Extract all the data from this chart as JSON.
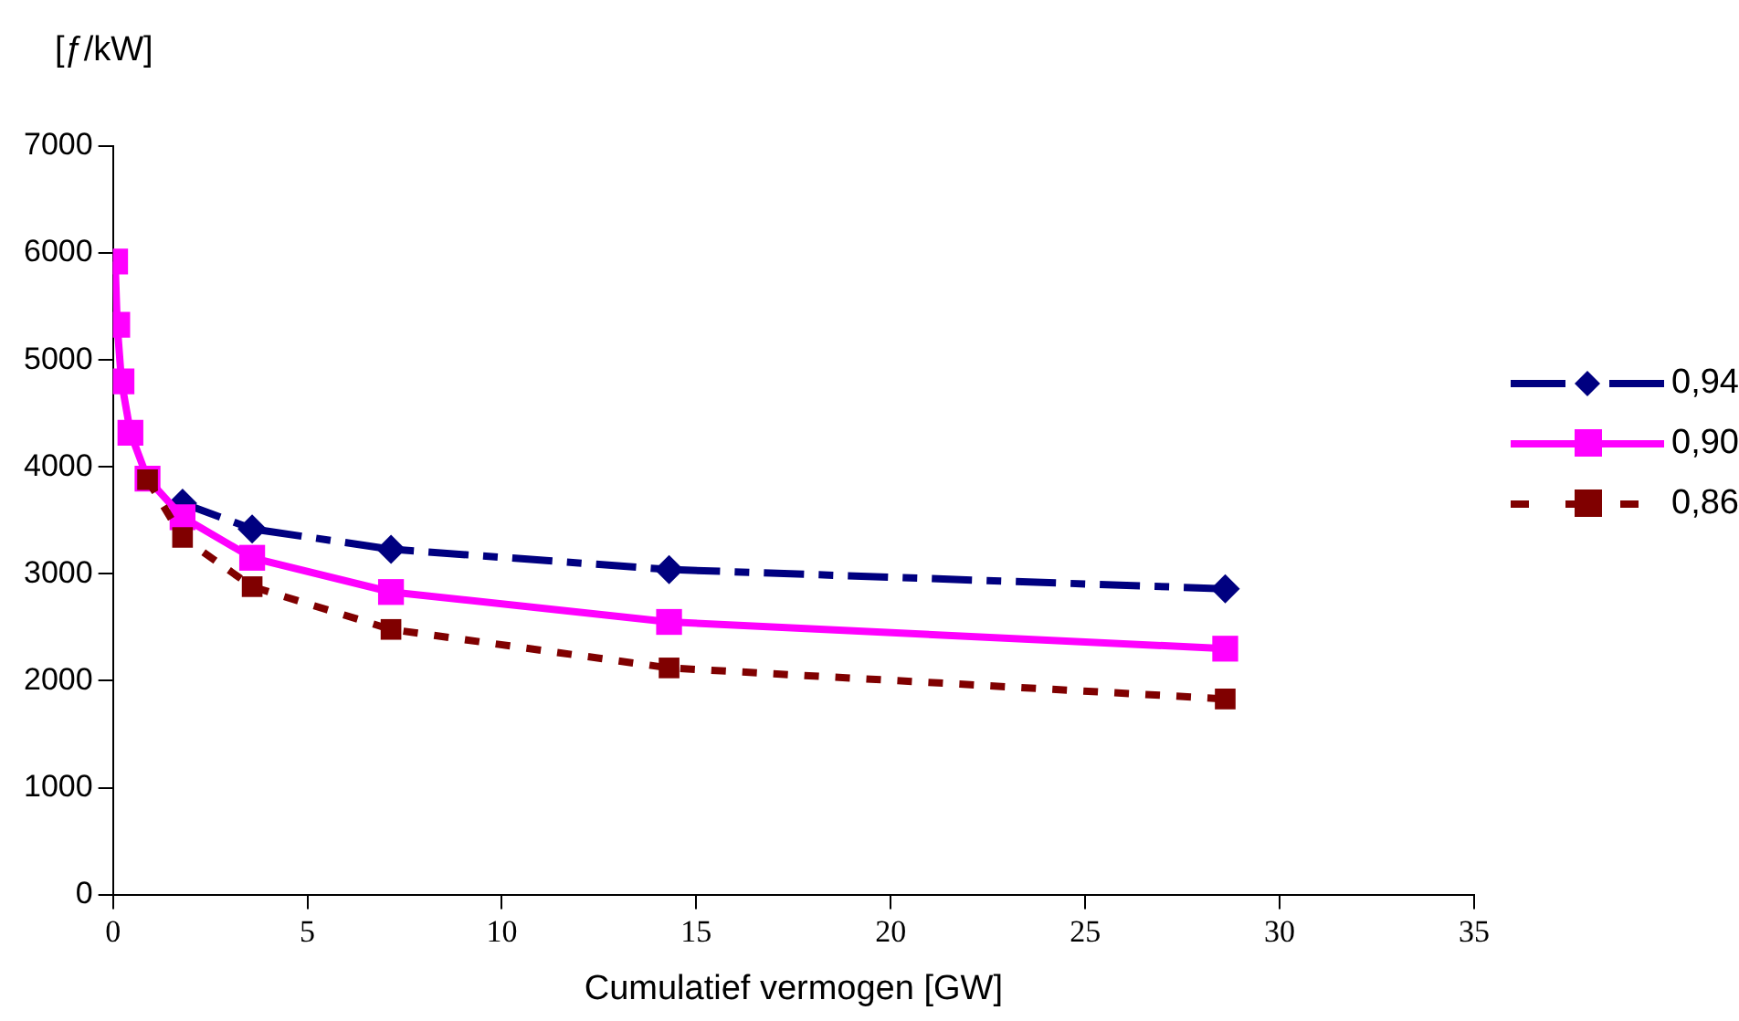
{
  "chart_data": {
    "type": "line",
    "ylabel": "[ƒ/kW]",
    "xlabel": "Cumulatief vermogen [GW]",
    "x": [
      0.056,
      0.11,
      0.22,
      0.45,
      0.89,
      1.79,
      3.58,
      7.15,
      14.3,
      28.6
    ],
    "series": [
      {
        "name": "0,94",
        "color": "#000080",
        "marker": "diamond",
        "line_style": "dashed",
        "values": [
          null,
          null,
          null,
          null,
          null,
          3660,
          3420,
          3230,
          3040,
          2860
        ]
      },
      {
        "name": "0,90",
        "color": "#ff00ff",
        "marker": "square",
        "line_style": "solid",
        "values": [
          5920,
          5330,
          4800,
          4320,
          3890,
          3530,
          3150,
          2830,
          2550,
          2300
        ]
      },
      {
        "name": "0,86",
        "color": "#800000",
        "marker": "square",
        "line_style": "dotted",
        "values": [
          null,
          null,
          null,
          null,
          3880,
          3340,
          2880,
          2480,
          2120,
          1830
        ]
      }
    ],
    "xlim": [
      0,
      35
    ],
    "xticks": [
      0,
      5,
      10,
      15,
      20,
      25,
      30,
      35
    ],
    "ylim": [
      0,
      7000
    ],
    "yticks": [
      0,
      1000,
      2000,
      3000,
      4000,
      5000,
      6000,
      7000
    ],
    "grid": false,
    "legend": "right"
  }
}
